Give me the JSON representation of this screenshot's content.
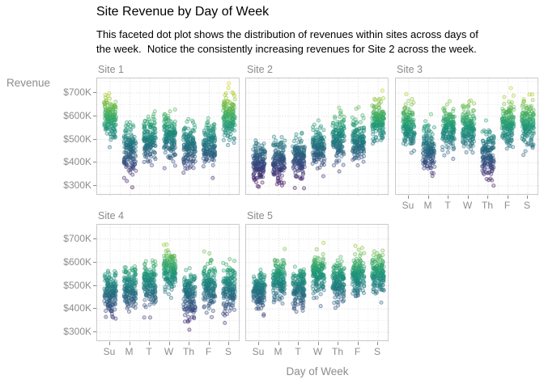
{
  "title": "Site Revenue by Day of Week",
  "subtitle_line1": "This faceted dot plot shows the distribution of revenues within sites across days of",
  "subtitle_line2": "the week.  Notice the consistently increasing revenues for Site 2 across the week.",
  "axes": {
    "y_label": "Revenue",
    "x_label": "Day of Week",
    "y_tick_labels": [
      "$700K",
      "$600K",
      "$500K",
      "$400K",
      "$300K"
    ],
    "y_tick_values": [
      700,
      600,
      500,
      400,
      300
    ],
    "x_tick_labels": [
      "Su",
      "M",
      "T",
      "W",
      "Th",
      "F",
      "S"
    ]
  },
  "colors": {
    "background": "#ffffff",
    "text": "#000000",
    "text_muted": "#8c8c8c",
    "facet_label": "#8a8a8a",
    "panel_border": "#c9c9c9",
    "grid_major": "#d8d8d8",
    "grid_minor": "#e9e9e9"
  },
  "chart_data": {
    "type": "scatter",
    "variant": "faceted-jittered-dot-plot",
    "title": "Site Revenue by Day of Week",
    "xlabel": "Day of Week",
    "ylabel": "Revenue",
    "categories": [
      "Su",
      "M",
      "T",
      "W",
      "Th",
      "F",
      "S"
    ],
    "facets": [
      "Site 1",
      "Site 2",
      "Site 3",
      "Site 4",
      "Site 5"
    ],
    "y_unit": "$K",
    "ylim": [
      250,
      765
    ],
    "grid": "dotted",
    "points_per_day": 150,
    "series": [
      {
        "name": "Site 1",
        "day_means": [
          600,
          455,
          505,
          515,
          468,
          478,
          598
        ],
        "day_sds": [
          45,
          52,
          48,
          45,
          48,
          48,
          46
        ]
      },
      {
        "name": "Site 2",
        "day_means": [
          395,
          408,
          420,
          470,
          502,
          502,
          582
        ],
        "day_sds": [
          40,
          45,
          42,
          42,
          45,
          44,
          42
        ]
      },
      {
        "name": "Site 3",
        "day_means": [
          555,
          462,
          552,
          555,
          432,
          572,
          568
        ],
        "day_sds": [
          45,
          48,
          48,
          48,
          50,
          48,
          50
        ]
      },
      {
        "name": "Site 4",
        "day_means": [
          465,
          490,
          512,
          572,
          452,
          500,
          492
        ],
        "day_sds": [
          48,
          48,
          48,
          40,
          48,
          52,
          50
        ]
      },
      {
        "name": "Site 5",
        "day_means": [
          478,
          528,
          495,
          552,
          515,
          542,
          558
        ],
        "day_sds": [
          40,
          42,
          45,
          45,
          42,
          45,
          42
        ]
      }
    ],
    "color_scale": {
      "name": "viridis",
      "domain": [
        280,
        740
      ],
      "stops": [
        [
          0.0,
          "#440154"
        ],
        [
          0.1,
          "#482475"
        ],
        [
          0.2,
          "#414487"
        ],
        [
          0.3,
          "#355f8d"
        ],
        [
          0.4,
          "#2a788e"
        ],
        [
          0.5,
          "#21918c"
        ],
        [
          0.6,
          "#22a884"
        ],
        [
          0.7,
          "#44bf70"
        ],
        [
          0.8,
          "#7ad151"
        ],
        [
          0.9,
          "#bddf26"
        ],
        [
          1.0,
          "#fde725"
        ]
      ]
    }
  }
}
